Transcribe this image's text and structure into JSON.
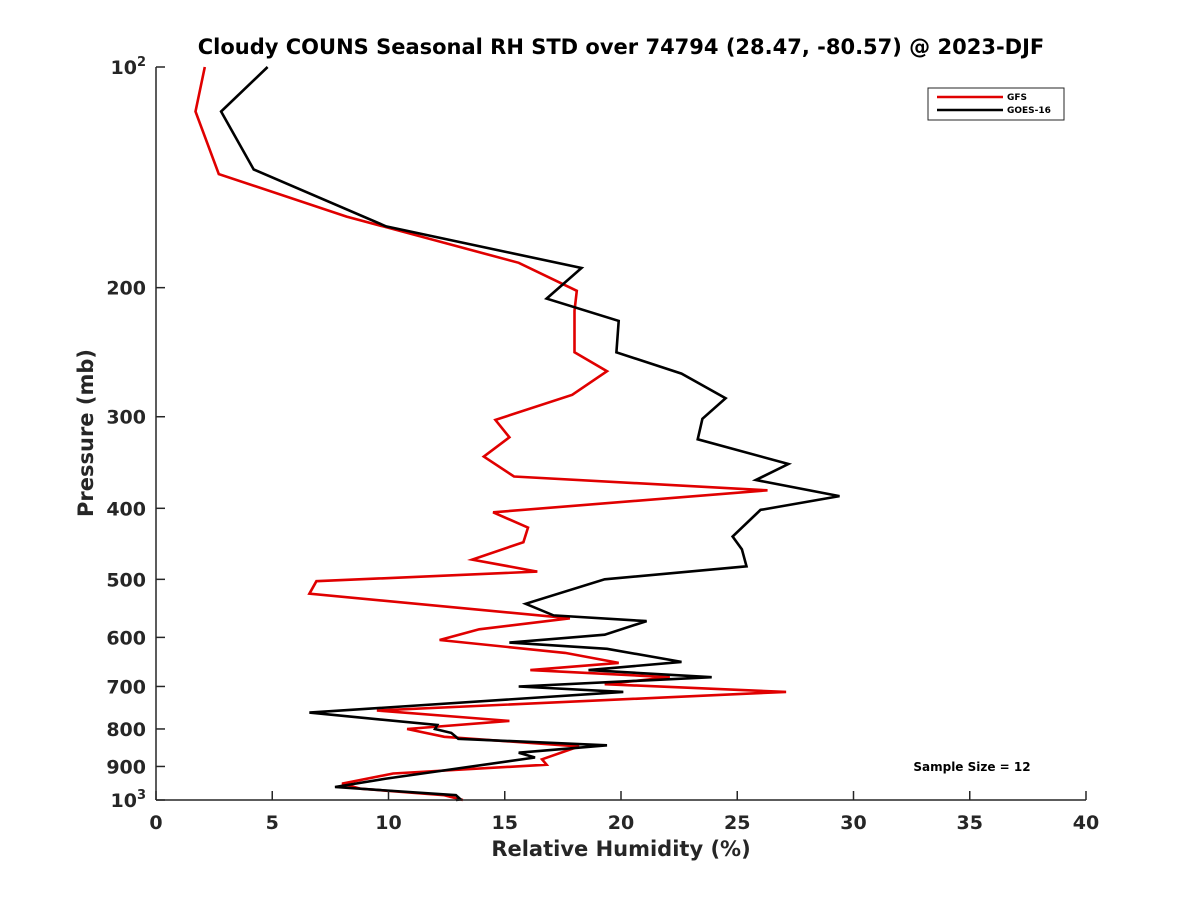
{
  "chart_data": {
    "type": "line",
    "title": "Cloudy COUNS Seasonal RH STD over 74794 (28.47, -80.57) @ 2023-DJF",
    "xlabel": "Relative Humidity (%)",
    "ylabel": "Pressure (mb)",
    "xlim": [
      0,
      40
    ],
    "ylim": [
      100,
      1000
    ],
    "yscale": "log",
    "yreversed": true,
    "grid": false,
    "xticks": [
      0,
      5,
      10,
      15,
      20,
      25,
      30,
      35,
      40
    ],
    "xtick_labels": [
      "0",
      "5",
      "10",
      "15",
      "20",
      "25",
      "30",
      "35",
      "40"
    ],
    "yticks": [
      {
        "value": 100,
        "label": "10",
        "sup": "2"
      },
      {
        "value": 200,
        "label": "200",
        "sup": ""
      },
      {
        "value": 300,
        "label": "300",
        "sup": ""
      },
      {
        "value": 400,
        "label": "400",
        "sup": ""
      },
      {
        "value": 500,
        "label": "500",
        "sup": ""
      },
      {
        "value": 600,
        "label": "600",
        "sup": ""
      },
      {
        "value": 700,
        "label": "700",
        "sup": ""
      },
      {
        "value": 800,
        "label": "800",
        "sup": ""
      },
      {
        "value": 900,
        "label": "900",
        "sup": ""
      },
      {
        "value": 1000,
        "label": "10",
        "sup": "3"
      }
    ],
    "legend_position": "top-right",
    "annotation": "Sample Size = 12",
    "series": [
      {
        "name": "GFS",
        "color": "#e00000",
        "points": [
          [
            2.1,
            100
          ],
          [
            1.7,
            115
          ],
          [
            2.7,
            140
          ],
          [
            8.2,
            160
          ],
          [
            15.6,
            185
          ],
          [
            18.1,
            202
          ],
          [
            18.0,
            215
          ],
          [
            18.0,
            245
          ],
          [
            19.4,
            260
          ],
          [
            17.9,
            280
          ],
          [
            14.6,
            303
          ],
          [
            15.2,
            320
          ],
          [
            14.1,
            340
          ],
          [
            15.4,
            362
          ],
          [
            26.3,
            378
          ],
          [
            14.5,
            405
          ],
          [
            16.0,
            425
          ],
          [
            15.8,
            445
          ],
          [
            13.6,
            470
          ],
          [
            16.4,
            488
          ],
          [
            6.9,
            503
          ],
          [
            6.6,
            523
          ],
          [
            17.8,
            565
          ],
          [
            13.9,
            585
          ],
          [
            12.2,
            605
          ],
          [
            17.6,
            630
          ],
          [
            19.9,
            650
          ],
          [
            16.1,
            665
          ],
          [
            22.1,
            680
          ],
          [
            19.3,
            695
          ],
          [
            27.1,
            712
          ],
          [
            9.5,
            755
          ],
          [
            15.2,
            780
          ],
          [
            10.8,
            800
          ],
          [
            12.4,
            820
          ],
          [
            18.2,
            845
          ],
          [
            16.6,
            880
          ],
          [
            16.8,
            895
          ],
          [
            10.2,
            920
          ],
          [
            8.0,
            950
          ],
          [
            8.8,
            965
          ],
          [
            12.4,
            985
          ],
          [
            13.2,
            1000
          ]
        ]
      },
      {
        "name": "GOES-16",
        "color": "#000000",
        "points": [
          [
            4.8,
            100
          ],
          [
            2.8,
            115
          ],
          [
            4.2,
            138
          ],
          [
            9.9,
            165
          ],
          [
            18.3,
            188
          ],
          [
            16.8,
            207
          ],
          [
            19.9,
            222
          ],
          [
            19.8,
            245
          ],
          [
            22.6,
            262
          ],
          [
            24.5,
            283
          ],
          [
            23.5,
            302
          ],
          [
            23.3,
            322
          ],
          [
            27.2,
            348
          ],
          [
            25.8,
            366
          ],
          [
            29.4,
            385
          ],
          [
            26.0,
            402
          ],
          [
            24.8,
            437
          ],
          [
            25.2,
            455
          ],
          [
            25.4,
            480
          ],
          [
            19.3,
            500
          ],
          [
            15.9,
            540
          ],
          [
            17.1,
            560
          ],
          [
            21.1,
            570
          ],
          [
            19.3,
            595
          ],
          [
            15.2,
            610
          ],
          [
            19.4,
            622
          ],
          [
            22.6,
            648
          ],
          [
            18.6,
            665
          ],
          [
            23.9,
            680
          ],
          [
            15.6,
            700
          ],
          [
            20.1,
            712
          ],
          [
            6.6,
            760
          ],
          [
            12.1,
            790
          ],
          [
            12.0,
            800
          ],
          [
            12.7,
            810
          ],
          [
            13.0,
            825
          ],
          [
            19.4,
            842
          ],
          [
            15.6,
            862
          ],
          [
            16.3,
            875
          ],
          [
            9.9,
            935
          ],
          [
            7.7,
            960
          ],
          [
            12.9,
            985
          ],
          [
            13.1,
            998
          ],
          [
            12.9,
            1000
          ]
        ]
      }
    ]
  }
}
